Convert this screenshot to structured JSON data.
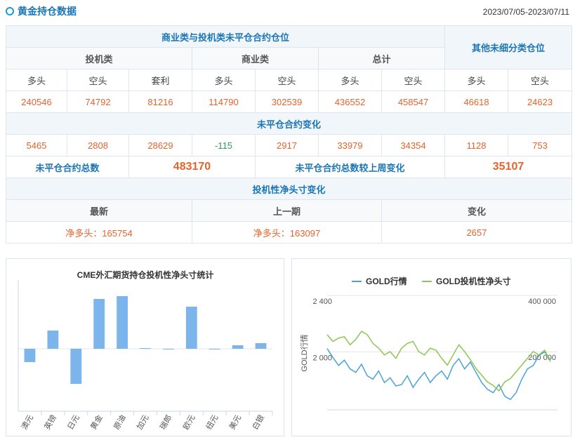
{
  "header": {
    "title": "黄金持仓数据",
    "date_range": "2023/07/05-2023/07/11"
  },
  "table": {
    "group_title": "商业类与投机类未平仓合约仓位",
    "other_title": "其他未细分类仓位",
    "subgroups": [
      "投机类",
      "商业类",
      "总计"
    ],
    "columns": [
      "多头",
      "空头",
      "套利",
      "多头",
      "空头",
      "多头",
      "空头",
      "多头",
      "空头"
    ],
    "positions": [
      240546,
      74792,
      81216,
      114790,
      302539,
      436552,
      458547,
      46618,
      24623
    ],
    "change_title": "未平仓合约变化",
    "changes": [
      5465,
      2808,
      28629,
      -115,
      2917,
      33979,
      34354,
      1128,
      753
    ],
    "total_label": "未平仓合约总数",
    "total": 483170,
    "total_change_label": "未平仓合约总数较上周变化",
    "total_change": 35107,
    "net_title": "投机性净头寸变化",
    "net_headers": [
      "最新",
      "上一期",
      "变化"
    ],
    "net_values": [
      "净多头：165754",
      "净多头：163097",
      2657
    ]
  },
  "chart_data": [
    {
      "type": "bar",
      "title": "CME外汇期货持仓投机性净头寸统计",
      "color": "#7cb5ec",
      "categories": [
        "澳元",
        "英镑",
        "日元",
        "黄金",
        "原油",
        "加元",
        "瑞郎",
        "欧元",
        "纽元",
        "美元",
        "白银"
      ],
      "values": [
        -19,
        26,
        -50,
        71,
        75,
        1,
        -1,
        60,
        0,
        5,
        8
      ],
      "ylim": [
        -89,
        88
      ]
    },
    {
      "type": "line",
      "ylabel": "GOLD行情",
      "ylim": [
        1590,
        2400
      ],
      "y2lim": [
        -7500,
        400000
      ],
      "yticks": [
        {
          "value": 2000,
          "label": "2 000"
        },
        {
          "value": 2400,
          "label": "2 400"
        }
      ],
      "y2ticks": [
        {
          "value": 200000,
          "label": "200 000"
        },
        {
          "value": 400000,
          "label": "400 000"
        }
      ],
      "grid": true,
      "series": [
        {
          "name": "GOLD行情",
          "color": "#4aa3d8",
          "values": [
            2024,
            1961,
            1904,
            1942,
            1880,
            1855,
            1913,
            1831,
            1807,
            1865,
            1783,
            1817,
            1759,
            1769,
            1831,
            1749,
            1807,
            1855,
            1783,
            1831,
            1865,
            1807,
            1904,
            1952,
            1880,
            1928,
            1855,
            1783,
            1735,
            1711,
            1769,
            1687,
            1663,
            1711,
            1807,
            1880,
            1904,
            1976,
            2000,
            1942
          ]
        },
        {
          "name": "GOLD投机性净头寸",
          "color": "#8cc751",
          "axis": "y2",
          "values": [
            260280,
            236180,
            248230,
            253050,
            224130,
            243410,
            272330,
            260280,
            228950,
            212080,
            187980,
            200030,
            175930,
            212080,
            228950,
            236180,
            200030,
            187980,
            212080,
            204850,
            175930,
            151830,
            187980,
            224130,
            200030,
            171110,
            139780,
            115680,
            91580,
            79530,
            60250,
            91580,
            103630,
            127730,
            151830,
            175930,
            200030,
            187980,
            204850,
            163880
          ]
        }
      ]
    }
  ]
}
